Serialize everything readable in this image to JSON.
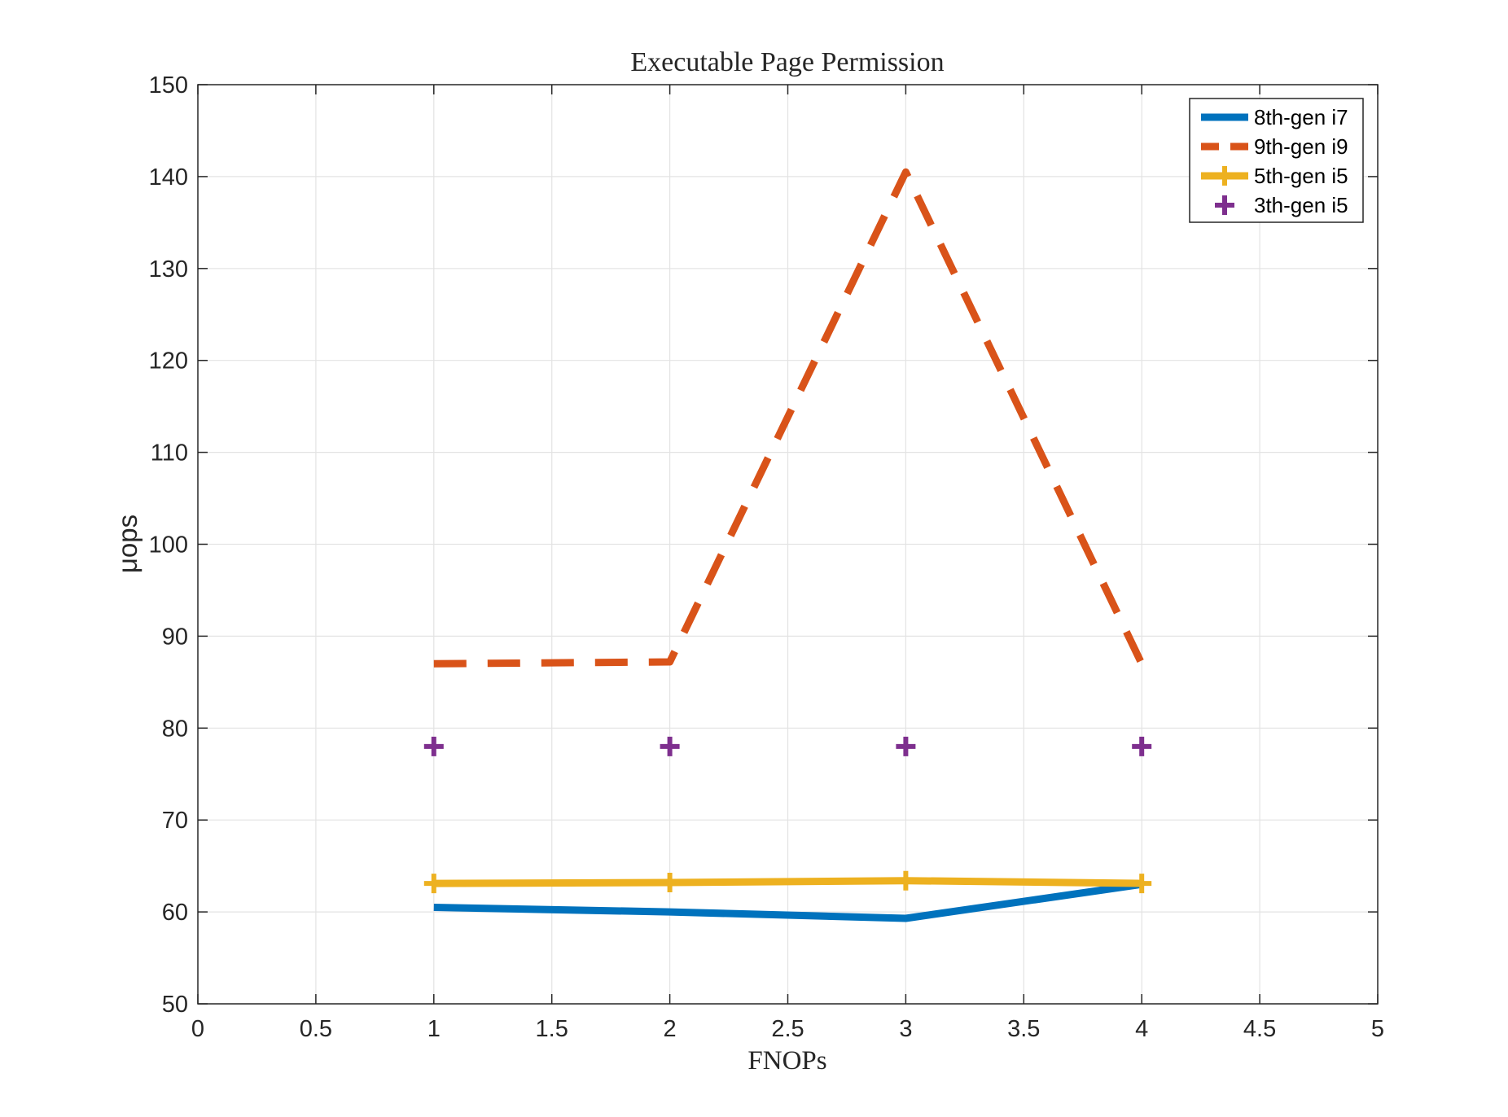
{
  "chart_data": {
    "type": "line",
    "title": "Executable Page Permission",
    "xlabel": "FNOPs",
    "ylabel": "μops",
    "xlim": [
      0,
      5
    ],
    "ylim": [
      50,
      150
    ],
    "x_ticks": [
      "0",
      "0.5",
      "1",
      "1.5",
      "2",
      "2.5",
      "3",
      "3.5",
      "4",
      "4.5",
      "5"
    ],
    "y_ticks": [
      "50",
      "60",
      "70",
      "80",
      "90",
      "100",
      "110",
      "120",
      "130",
      "140",
      "150"
    ],
    "grid": true,
    "legend_position": "top-right",
    "x": [
      1,
      2,
      3,
      4
    ],
    "series": [
      {
        "name": "8th-gen i7",
        "values": [
          60.5,
          60.0,
          59.3,
          63.0
        ],
        "color": "#0072BD",
        "line": "solid",
        "marker": "none"
      },
      {
        "name": "9th-gen i9",
        "values": [
          87.0,
          87.2,
          140.5,
          87.0
        ],
        "color": "#D95319",
        "line": "dashed",
        "marker": "none"
      },
      {
        "name": "5th-gen i5",
        "values": [
          63.1,
          63.2,
          63.4,
          63.1
        ],
        "color": "#EDB120",
        "line": "solid",
        "marker": "plus"
      },
      {
        "name": "3th-gen i5",
        "values": [
          78.0,
          78.0,
          78.0,
          78.0
        ],
        "color": "#7E2F8E",
        "line": "none",
        "marker": "plus"
      }
    ]
  }
}
